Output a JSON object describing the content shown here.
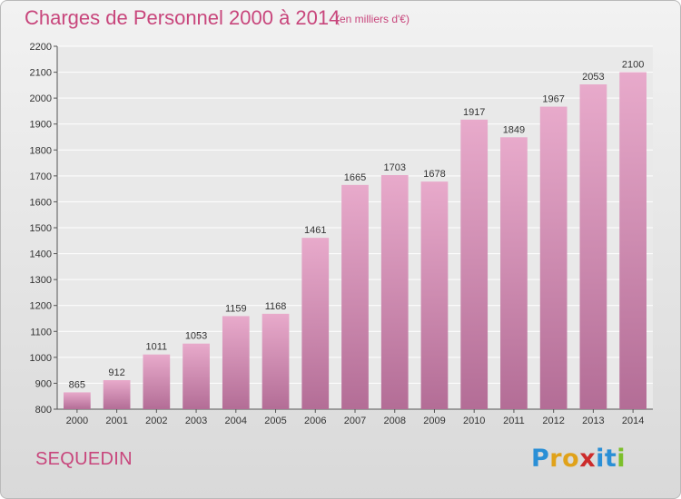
{
  "header": {
    "title": "Charges de Personnel 2000 à 2014",
    "subtitle": "(en milliers d'€)"
  },
  "footer": {
    "commune": "SEQUEDIN",
    "logo_text": "Proxiti"
  },
  "colors": {
    "title": "#c8467c",
    "bar_top": "#e8aacb",
    "bar_bottom": "#b36d96",
    "logo_letters": [
      "#2a8fd6",
      "#e0a21a",
      "#e0a21a",
      "#cc2b2b",
      "#2a8fd6",
      "#2a8fd6",
      "#7cbf2a"
    ]
  },
  "chart_data": {
    "type": "bar",
    "title": "Charges de Personnel 2000 à 2014",
    "categories": [
      "2000",
      "2001",
      "2002",
      "2003",
      "2004",
      "2005",
      "2006",
      "2007",
      "2008",
      "2009",
      "2010",
      "2011",
      "2012",
      "2013",
      "2014"
    ],
    "values": [
      865,
      912,
      1011,
      1053,
      1159,
      1168,
      1461,
      1665,
      1703,
      1678,
      1917,
      1849,
      1967,
      2053,
      2100
    ],
    "ylim": [
      800,
      2200
    ],
    "yticks": [
      800,
      900,
      1000,
      1100,
      1200,
      1300,
      1400,
      1500,
      1600,
      1700,
      1800,
      1900,
      2000,
      2100,
      2200
    ],
    "grid": true,
    "xlabel": "",
    "ylabel": ""
  }
}
